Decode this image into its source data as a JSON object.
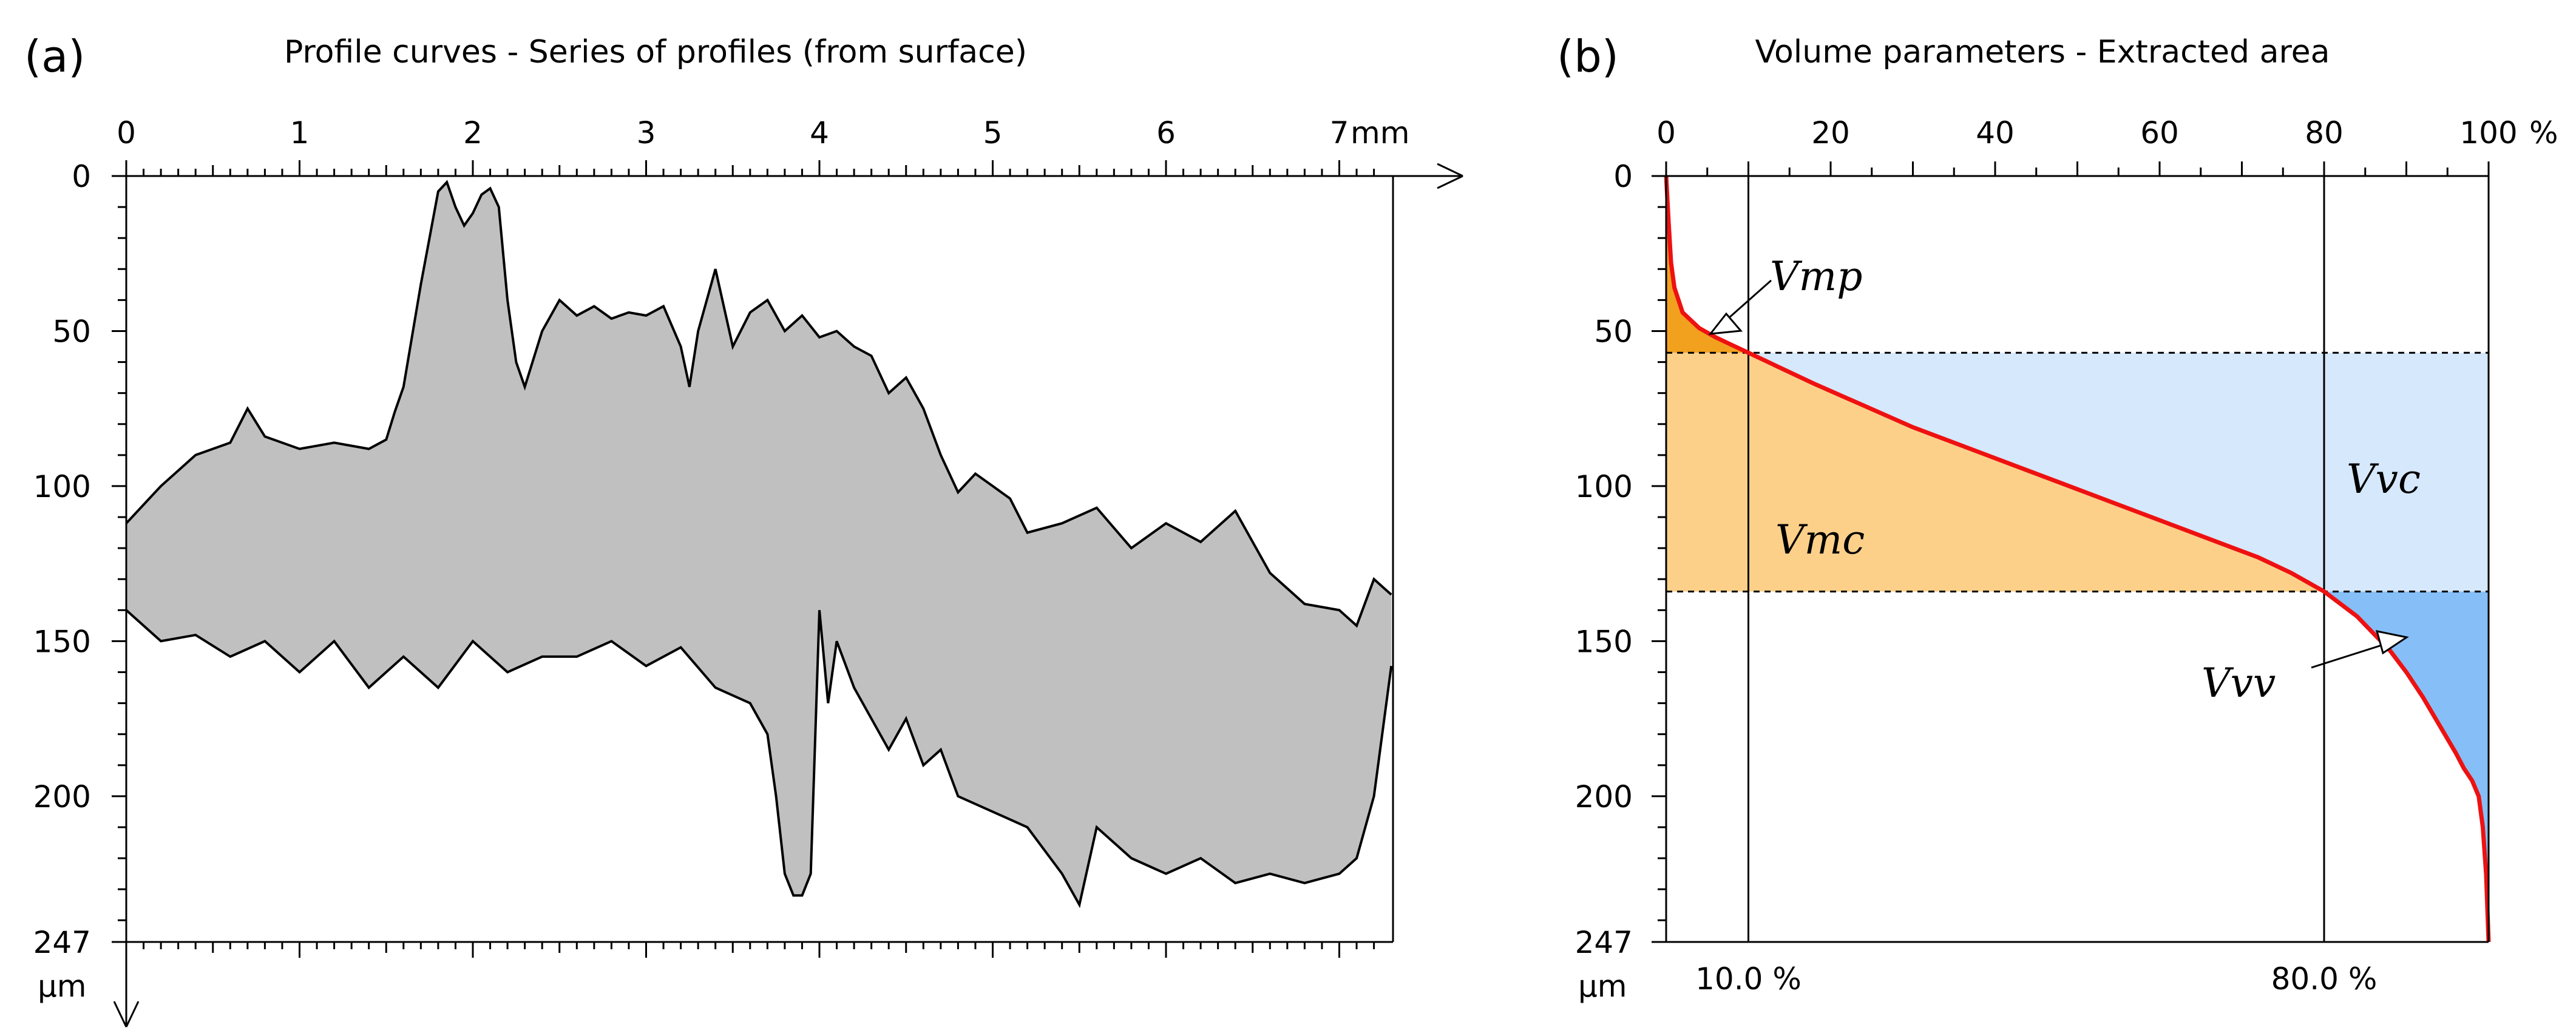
{
  "chart_data": [
    {
      "id": "a",
      "type": "area",
      "panel_label": "(a)",
      "title": "Profile curves - Series of profiles (from surface)",
      "x_unit": "mm",
      "y_unit": "µm",
      "xlim": [
        0,
        7.3
      ],
      "ylim": [
        0,
        247
      ],
      "x_ticks": [
        0,
        1,
        2,
        3,
        4,
        5,
        6,
        7
      ],
      "y_ticks": [
        0,
        50,
        100,
        150,
        200,
        247
      ],
      "fill_color": "#c0c0c0",
      "upper_envelope": {
        "x": [
          0,
          0.2,
          0.4,
          0.6,
          0.7,
          0.8,
          1.0,
          1.2,
          1.4,
          1.5,
          1.55,
          1.6,
          1.7,
          1.75,
          1.8,
          1.85,
          1.9,
          1.95,
          2.0,
          2.05,
          2.1,
          2.15,
          2.2,
          2.25,
          2.3,
          2.4,
          2.5,
          2.6,
          2.7,
          2.8,
          2.9,
          3.0,
          3.1,
          3.2,
          3.25,
          3.3,
          3.4,
          3.5,
          3.6,
          3.7,
          3.8,
          3.9,
          4.0,
          4.1,
          4.2,
          4.3,
          4.4,
          4.5,
          4.6,
          4.7,
          4.8,
          4.9,
          5.0,
          5.1,
          5.2,
          5.4,
          5.6,
          5.8,
          6.0,
          6.2,
          6.4,
          6.6,
          6.8,
          7.0,
          7.1,
          7.2,
          7.3
        ],
        "y": [
          112,
          100,
          90,
          86,
          75,
          84,
          88,
          86,
          88,
          85,
          76,
          68,
          35,
          20,
          5,
          2,
          10,
          16,
          12,
          6,
          4,
          10,
          40,
          60,
          68,
          50,
          40,
          45,
          42,
          46,
          44,
          45,
          42,
          55,
          68,
          50,
          30,
          55,
          44,
          40,
          50,
          45,
          52,
          50,
          55,
          58,
          70,
          65,
          75,
          90,
          102,
          96,
          100,
          104,
          115,
          112,
          107,
          120,
          112,
          118,
          108,
          128,
          138,
          140,
          145,
          130,
          135
        ]
      },
      "lower_envelope": {
        "x": [
          0,
          0.2,
          0.4,
          0.6,
          0.8,
          1.0,
          1.2,
          1.4,
          1.6,
          1.8,
          2.0,
          2.2,
          2.4,
          2.6,
          2.8,
          3.0,
          3.2,
          3.4,
          3.6,
          3.7,
          3.75,
          3.8,
          3.85,
          3.9,
          3.95,
          4.0,
          4.05,
          4.1,
          4.2,
          4.4,
          4.5,
          4.6,
          4.7,
          4.8,
          5.0,
          5.2,
          5.4,
          5.5,
          5.6,
          5.8,
          6.0,
          6.2,
          6.4,
          6.6,
          6.8,
          7.0,
          7.1,
          7.2,
          7.3
        ],
        "y": [
          140,
          150,
          148,
          155,
          150,
          160,
          150,
          165,
          155,
          165,
          150,
          160,
          155,
          155,
          150,
          158,
          152,
          165,
          170,
          180,
          200,
          225,
          232,
          232,
          225,
          140,
          170,
          150,
          165,
          185,
          175,
          190,
          185,
          200,
          205,
          210,
          225,
          235,
          210,
          220,
          225,
          220,
          228,
          225,
          228,
          225,
          220,
          200,
          158
        ]
      }
    },
    {
      "id": "b",
      "type": "line",
      "panel_label": "(b)",
      "title": "Volume parameters - Extracted area",
      "x_unit": "%",
      "y_unit": "µm",
      "xlim": [
        0,
        100
      ],
      "ylim": [
        0,
        247
      ],
      "x_ticks": [
        0,
        20,
        40,
        60,
        80,
        100
      ],
      "y_ticks": [
        0,
        50,
        100,
        150,
        200,
        247
      ],
      "curve_color": "#ee1111",
      "curve": {
        "x": [
          0,
          0.3,
          0.6,
          1,
          2,
          4,
          6,
          8,
          10,
          14,
          18,
          24,
          30,
          36,
          42,
          48,
          54,
          60,
          66,
          72,
          76,
          80,
          84,
          88,
          90,
          92,
          94,
          96,
          97,
          98,
          98.8,
          99.3,
          99.7,
          100
        ],
        "y": [
          0,
          15,
          28,
          36,
          44,
          49,
          52,
          54.5,
          57,
          62,
          67,
          74,
          81,
          87,
          93,
          99,
          105,
          111,
          117,
          123,
          128,
          134,
          142,
          153,
          160,
          168,
          177,
          186,
          191,
          195,
          200,
          210,
          225,
          247
        ]
      },
      "material_ratio_lines": [
        10.0,
        80.0
      ],
      "material_ratio_labels": [
        "10.0 %",
        "80.0 %"
      ],
      "height_lines": [
        57,
        134
      ],
      "annotations": {
        "vmp": "Vmp",
        "vmc": "Vmc",
        "vvc": "Vvc",
        "vvv": "Vvv"
      },
      "region_colors": {
        "vmp": "#f2a11f",
        "vmc": "#fdd08a",
        "vvc": "#d6e8fb",
        "vvv": "#86bff7"
      }
    }
  ]
}
